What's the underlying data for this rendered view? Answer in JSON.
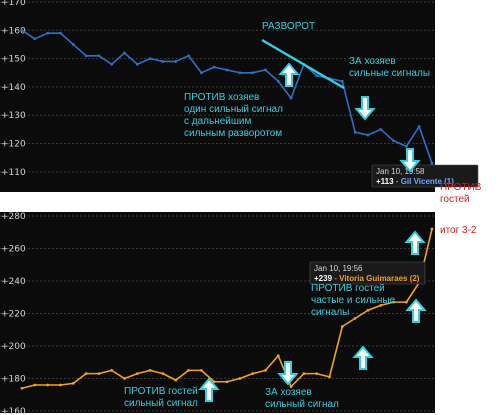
{
  "chart_data": [
    {
      "type": "line",
      "ylim": [
        105,
        170
      ],
      "y_ticks": [
        110,
        120,
        130,
        140,
        150,
        160,
        170
      ],
      "y_tick_labels": [
        "+110",
        "+120",
        "+130",
        "+140",
        "+150",
        "+160",
        "+170"
      ],
      "line_color": "#2f6fc4",
      "values": [
        160,
        157,
        159,
        159,
        155,
        151,
        151,
        148,
        152,
        148,
        150,
        149,
        149,
        151,
        145,
        147,
        146,
        145,
        145,
        146,
        142,
        136,
        148,
        144,
        143,
        142,
        124,
        123,
        125,
        121,
        119,
        126,
        113
      ],
      "tooltip": {
        "date": "Jan 10, 19:58",
        "value": "+113",
        "sep": " - ",
        "team": "Gil Vicente (1)",
        "team_color": "#6ea8ff"
      }
    },
    {
      "type": "line",
      "ylim": [
        160,
        280
      ],
      "y_ticks": [
        160,
        180,
        200,
        220,
        240,
        260,
        280
      ],
      "y_tick_labels": [
        "+160",
        "+180",
        "+200",
        "+220",
        "+240",
        "+260",
        "+280"
      ],
      "line_color": "#f3a21d",
      "values": [
        174,
        176,
        176,
        176,
        177,
        183,
        183,
        185,
        180,
        183,
        185,
        183,
        179,
        185,
        185,
        178,
        178,
        180,
        183,
        185,
        194,
        175,
        183,
        183,
        181,
        212,
        217,
        222,
        225,
        227,
        227,
        239,
        272
      ],
      "tooltip": {
        "date": "Jan 10, 19:56",
        "value": "+239",
        "sep": " - ",
        "team": "Vitoria Guimaraes (2)",
        "team_color": "#f3a21d"
      }
    }
  ],
  "annotations": {
    "top_reversal": "РАЗВОРОТ",
    "top_for_home": [
      "ЗА хозяев",
      "сильные сигналы"
    ],
    "top_against_home": [
      "ПРОТИВ хозяев",
      "один сильный сигнал",
      "с дальнейшим",
      "сильным разворотом"
    ],
    "right_against_away": [
      "ПРОТИВ",
      "гостей"
    ],
    "right_total": "итог 3-2",
    "bottom_against_away_mid": [
      "ПРОТИВ гостей",
      "частые и сильные",
      "сигналы"
    ],
    "bottom_against_away_left": [
      "ПРОТИВ гостей",
      "сильный сигнал"
    ],
    "bottom_for_home": [
      "ЗА хозяев",
      "сильный сигнал"
    ]
  },
  "colors": {
    "panel_bg": "#0b0b0b",
    "grid": "#3a3a3a",
    "annotation": "#2fd1e0",
    "arrow_fill": "#ffffff",
    "result": "#e01818"
  },
  "icons": [
    "arrow-up-icon",
    "arrow-down-icon"
  ]
}
